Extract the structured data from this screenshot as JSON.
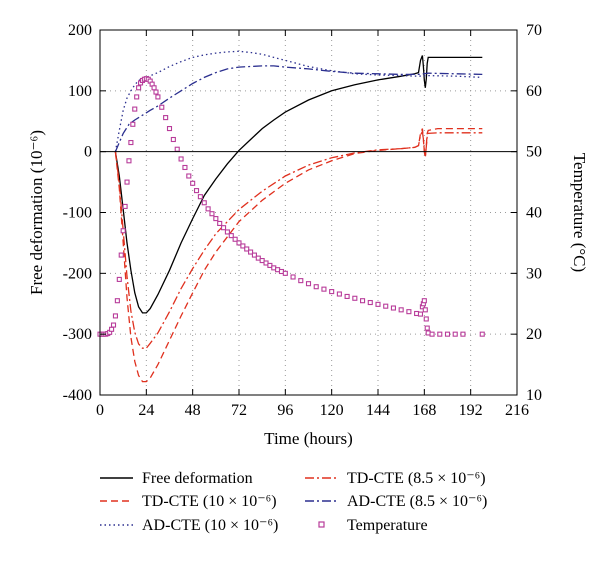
{
  "chart_data": {
    "type": "line",
    "title": "",
    "xlabel": "Time (hours)",
    "ylabel_left": "Free deformation (10⁻⁶)",
    "ylabel_right": "Temperature (°C)",
    "xlim": [
      0,
      216
    ],
    "xticks": [
      0,
      24,
      48,
      72,
      96,
      120,
      144,
      168,
      192,
      216
    ],
    "ylim_left": [
      -400,
      200
    ],
    "yticks_left": [
      -400,
      -300,
      -200,
      -100,
      0,
      100,
      200
    ],
    "ylim_right": [
      10,
      70
    ],
    "yticks_right": [
      10,
      20,
      30,
      40,
      50,
      60,
      70
    ],
    "grid": "dotted",
    "legend_position": "bottom",
    "colors": {
      "black": "#000000",
      "red": "#e0301e",
      "navy": "#2b2f8f",
      "magenta": "#b83c9a"
    },
    "series": [
      {
        "name": "Free deformation",
        "axis": "left",
        "style": "solid",
        "color": "#000000",
        "points": [
          [
            8,
            0
          ],
          [
            10,
            -40
          ],
          [
            12,
            -95
          ],
          [
            14,
            -150
          ],
          [
            16,
            -195
          ],
          [
            18,
            -232
          ],
          [
            20,
            -255
          ],
          [
            22,
            -265
          ],
          [
            24,
            -265
          ],
          [
            26,
            -258
          ],
          [
            30,
            -235
          ],
          [
            36,
            -195
          ],
          [
            42,
            -150
          ],
          [
            48,
            -110
          ],
          [
            54,
            -72
          ],
          [
            60,
            -45
          ],
          [
            66,
            -20
          ],
          [
            72,
            2
          ],
          [
            78,
            20
          ],
          [
            84,
            38
          ],
          [
            90,
            52
          ],
          [
            96,
            65
          ],
          [
            108,
            85
          ],
          [
            120,
            100
          ],
          [
            132,
            110
          ],
          [
            144,
            118
          ],
          [
            156,
            124
          ],
          [
            163,
            128
          ],
          [
            165,
            130
          ],
          [
            166,
            150
          ],
          [
            167,
            158
          ],
          [
            167.5,
            140
          ],
          [
            168,
            118
          ],
          [
            168.5,
            105
          ],
          [
            169,
            120
          ],
          [
            169.5,
            145
          ],
          [
            170,
            155
          ],
          [
            175,
            155
          ],
          [
            185,
            155
          ],
          [
            195,
            155
          ],
          [
            198,
            155
          ]
        ]
      },
      {
        "name": "TD-CTE (10 × 10⁻⁶)",
        "axis": "left",
        "style": "dashed",
        "color": "#e0301e",
        "points": [
          [
            8,
            0
          ],
          [
            10,
            -60
          ],
          [
            12,
            -150
          ],
          [
            14,
            -240
          ],
          [
            16,
            -305
          ],
          [
            18,
            -345
          ],
          [
            20,
            -368
          ],
          [
            22,
            -378
          ],
          [
            24,
            -378
          ],
          [
            26,
            -372
          ],
          [
            30,
            -350
          ],
          [
            36,
            -310
          ],
          [
            42,
            -270
          ],
          [
            48,
            -232
          ],
          [
            54,
            -195
          ],
          [
            60,
            -165
          ],
          [
            66,
            -140
          ],
          [
            72,
            -115
          ],
          [
            84,
            -80
          ],
          [
            96,
            -52
          ],
          [
            108,
            -30
          ],
          [
            120,
            -15
          ],
          [
            132,
            -3
          ],
          [
            144,
            2
          ],
          [
            156,
            5
          ],
          [
            163,
            7
          ],
          [
            165,
            10
          ],
          [
            166,
            30
          ],
          [
            167,
            38
          ],
          [
            167.5,
            20
          ],
          [
            168,
            0
          ],
          [
            168.5,
            -10
          ],
          [
            169,
            10
          ],
          [
            169.5,
            30
          ],
          [
            170,
            35
          ],
          [
            175,
            38
          ],
          [
            185,
            38
          ],
          [
            195,
            38
          ],
          [
            198,
            38
          ]
        ]
      },
      {
        "name": "AD-CTE (10 × 10⁻⁶)",
        "axis": "left",
        "style": "dotted",
        "color": "#2b2f8f",
        "points": [
          [
            8,
            0
          ],
          [
            10,
            35
          ],
          [
            12,
            68
          ],
          [
            14,
            88
          ],
          [
            16,
            100
          ],
          [
            18,
            110
          ],
          [
            20,
            117
          ],
          [
            24,
            122
          ],
          [
            30,
            130
          ],
          [
            36,
            140
          ],
          [
            42,
            148
          ],
          [
            48,
            155
          ],
          [
            54,
            159
          ],
          [
            60,
            162
          ],
          [
            66,
            164
          ],
          [
            72,
            165
          ],
          [
            78,
            163
          ],
          [
            84,
            160
          ],
          [
            90,
            155
          ],
          [
            96,
            150
          ],
          [
            108,
            140
          ],
          [
            120,
            133
          ],
          [
            132,
            128
          ],
          [
            144,
            126
          ],
          [
            156,
            125
          ],
          [
            165,
            124
          ],
          [
            170,
            125
          ],
          [
            185,
            124
          ],
          [
            198,
            122
          ]
        ]
      },
      {
        "name": "TD-CTE (8.5 × 10⁻⁶)",
        "axis": "left",
        "style": "dashdot",
        "color": "#e0301e",
        "points": [
          [
            8,
            0
          ],
          [
            10,
            -52
          ],
          [
            12,
            -130
          ],
          [
            14,
            -205
          ],
          [
            16,
            -262
          ],
          [
            18,
            -297
          ],
          [
            20,
            -316
          ],
          [
            22,
            -323
          ],
          [
            24,
            -323
          ],
          [
            26,
            -315
          ],
          [
            30,
            -298
          ],
          [
            36,
            -263
          ],
          [
            42,
            -225
          ],
          [
            48,
            -192
          ],
          [
            54,
            -162
          ],
          [
            60,
            -135
          ],
          [
            66,
            -115
          ],
          [
            72,
            -95
          ],
          [
            84,
            -65
          ],
          [
            96,
            -40
          ],
          [
            108,
            -22
          ],
          [
            120,
            -10
          ],
          [
            132,
            -2
          ],
          [
            144,
            3
          ],
          [
            156,
            5
          ],
          [
            163,
            7
          ],
          [
            165,
            10
          ],
          [
            166,
            27
          ],
          [
            167,
            33
          ],
          [
            167.5,
            20
          ],
          [
            168,
            2
          ],
          [
            168.5,
            -8
          ],
          [
            169,
            8
          ],
          [
            169.5,
            25
          ],
          [
            170,
            30
          ],
          [
            175,
            31
          ],
          [
            185,
            31
          ],
          [
            195,
            31
          ],
          [
            198,
            31
          ]
        ]
      },
      {
        "name": "AD-CTE (8.5 × 10⁻⁶)",
        "axis": "left",
        "style": "dashdot",
        "color": "#2b2f8f",
        "points": [
          [
            8,
            0
          ],
          [
            10,
            15
          ],
          [
            12,
            30
          ],
          [
            15,
            45
          ],
          [
            18,
            52
          ],
          [
            22,
            60
          ],
          [
            26,
            68
          ],
          [
            30,
            75
          ],
          [
            36,
            88
          ],
          [
            42,
            100
          ],
          [
            48,
            112
          ],
          [
            54,
            122
          ],
          [
            60,
            130
          ],
          [
            66,
            136
          ],
          [
            72,
            139
          ],
          [
            78,
            140
          ],
          [
            84,
            141
          ],
          [
            90,
            141
          ],
          [
            96,
            139
          ],
          [
            108,
            136
          ],
          [
            120,
            132
          ],
          [
            132,
            129
          ],
          [
            144,
            128
          ],
          [
            156,
            127
          ],
          [
            165,
            127
          ],
          [
            170,
            129
          ],
          [
            185,
            128
          ],
          [
            198,
            127
          ]
        ]
      },
      {
        "name": "Temperature",
        "axis": "right",
        "style": "markers",
        "color": "#b83c9a",
        "points": [
          [
            0,
            20
          ],
          [
            1,
            20
          ],
          [
            2,
            20
          ],
          [
            3,
            20
          ],
          [
            4,
            20.1
          ],
          [
            5,
            20.3
          ],
          [
            6,
            20.8
          ],
          [
            7,
            21.5
          ],
          [
            8,
            23
          ],
          [
            9,
            25.5
          ],
          [
            10,
            29
          ],
          [
            11,
            33
          ],
          [
            12,
            37
          ],
          [
            13,
            41
          ],
          [
            14,
            45
          ],
          [
            15,
            48.5
          ],
          [
            16,
            51.5
          ],
          [
            17,
            54.5
          ],
          [
            18,
            57
          ],
          [
            19,
            59
          ],
          [
            20,
            60.5
          ],
          [
            21,
            61.3
          ],
          [
            22,
            61.7
          ],
          [
            23,
            61.9
          ],
          [
            24,
            62
          ],
          [
            25,
            61.9
          ],
          [
            26,
            61.6
          ],
          [
            27,
            61.1
          ],
          [
            28,
            60.5
          ],
          [
            29,
            59.8
          ],
          [
            30,
            59
          ],
          [
            32,
            57.3
          ],
          [
            34,
            55.6
          ],
          [
            36,
            53.8
          ],
          [
            38,
            52
          ],
          [
            40,
            50.4
          ],
          [
            42,
            48.8
          ],
          [
            44,
            47.4
          ],
          [
            46,
            46
          ],
          [
            48,
            44.8
          ],
          [
            50,
            43.6
          ],
          [
            52,
            42.6
          ],
          [
            54,
            41.6
          ],
          [
            56,
            40.6
          ],
          [
            58,
            39.8
          ],
          [
            60,
            39
          ],
          [
            62,
            38.2
          ],
          [
            64,
            37.5
          ],
          [
            66,
            36.8
          ],
          [
            68,
            36.2
          ],
          [
            70,
            35.6
          ],
          [
            72,
            35
          ],
          [
            74,
            34.5
          ],
          [
            76,
            34
          ],
          [
            78,
            33.5
          ],
          [
            80,
            33
          ],
          [
            82,
            32.5
          ],
          [
            84,
            32.1
          ],
          [
            86,
            31.7
          ],
          [
            88,
            31.3
          ],
          [
            90,
            30.9
          ],
          [
            92,
            30.6
          ],
          [
            94,
            30.3
          ],
          [
            96,
            30
          ],
          [
            100,
            29.4
          ],
          [
            104,
            28.8
          ],
          [
            108,
            28.3
          ],
          [
            112,
            27.8
          ],
          [
            116,
            27.4
          ],
          [
            120,
            27
          ],
          [
            124,
            26.6
          ],
          [
            128,
            26.2
          ],
          [
            132,
            25.9
          ],
          [
            136,
            25.5
          ],
          [
            140,
            25.2
          ],
          [
            144,
            24.9
          ],
          [
            148,
            24.6
          ],
          [
            152,
            24.3
          ],
          [
            156,
            24
          ],
          [
            160,
            23.7
          ],
          [
            164,
            23.4
          ],
          [
            166,
            23.3
          ],
          [
            167,
            24.5
          ],
          [
            167.5,
            25
          ],
          [
            168,
            25.5
          ],
          [
            168.5,
            24
          ],
          [
            169,
            22.5
          ],
          [
            169.5,
            21
          ],
          [
            170,
            20.2
          ],
          [
            172,
            20
          ],
          [
            176,
            20
          ],
          [
            180,
            20
          ],
          [
            184,
            20
          ],
          [
            188,
            20
          ],
          [
            198,
            20
          ]
        ]
      }
    ]
  }
}
